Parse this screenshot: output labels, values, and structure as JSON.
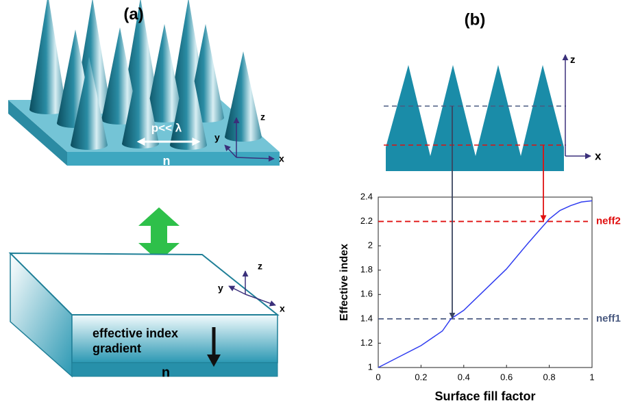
{
  "panel_a": {
    "label": "(a)",
    "period_label": "p<< λ",
    "substrate_label": "n",
    "axis_z": "z",
    "axis_y": "y",
    "axis_x": "x",
    "gradient_label": [
      "effective  index",
      "gradient"
    ],
    "bottom_substrate_label": "n",
    "bottom_axis_z": "z",
    "bottom_axis_y": "y",
    "bottom_axis_x": "x"
  },
  "panel_b": {
    "label": "(b)",
    "axis_z": "z",
    "axis_x": "x"
  },
  "chart_data": {
    "type": "line",
    "xlabel": "Surface fill factor",
    "ylabel": "Effective index",
    "x": [
      0,
      0.1,
      0.2,
      0.3,
      0.34,
      0.4,
      0.5,
      0.6,
      0.7,
      0.75,
      0.8,
      0.85,
      0.9,
      0.95,
      1.0
    ],
    "series": [
      {
        "color": "#2f3cf0",
        "values": [
          1.0,
          1.09,
          1.18,
          1.3,
          1.4,
          1.47,
          1.64,
          1.81,
          2.02,
          2.12,
          2.22,
          2.29,
          2.33,
          2.36,
          2.37
        ]
      }
    ],
    "xlim": [
      0,
      1
    ],
    "ylim": [
      1,
      2.4
    ],
    "xticks": [
      0,
      0.2,
      0.4,
      0.6,
      0.8,
      1
    ],
    "yticks": [
      1,
      1.2,
      1.4,
      1.6,
      1.8,
      2,
      2.2,
      2.4
    ],
    "reference_lines": [
      {
        "value": 2.2,
        "label": "neff2",
        "color": "#e01010"
      },
      {
        "value": 1.4,
        "label": "neff1",
        "color": "#4a5a80"
      }
    ]
  }
}
